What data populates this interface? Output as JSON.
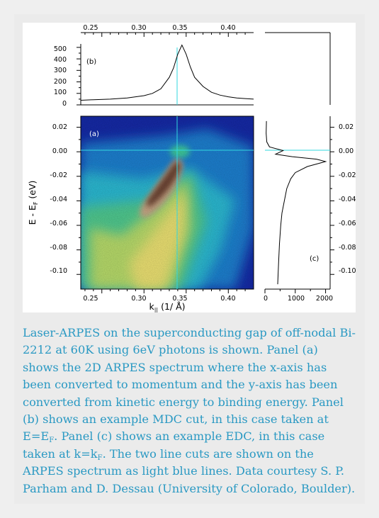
{
  "figure": {
    "panel_labels": {
      "a": "(a)",
      "b": "(b)",
      "c": "(c)"
    },
    "mdc_panel": {
      "top_ticks": [
        "0.25",
        "0.30",
        "0.35",
        "0.40"
      ],
      "y_ticks": [
        "500",
        "400",
        "300",
        "200",
        "100",
        "0"
      ]
    },
    "spectrum_panel": {
      "x_ticks": [
        "0.25",
        "0.30",
        "0.35",
        "0.40"
      ],
      "y_ticks": [
        "0.02",
        "0.00",
        "-0.02",
        "-0.04",
        "-0.06",
        "-0.08",
        "-0.10"
      ],
      "xlabel_main": "k",
      "xlabel_sub": "||",
      "xlabel_unit": " (1/ Å)",
      "ylabel_main": "E - E",
      "ylabel_sub": "F",
      "ylabel_unit": " (eV)"
    },
    "edc_panel": {
      "x_ticks": [
        "0",
        "1000",
        "2000"
      ],
      "y_ticks": [
        "0.02",
        "0.00",
        "-0.02",
        "-0.04",
        "-0.06",
        "-0.08",
        "-0.10"
      ]
    },
    "cut_line_color": "#31d7df"
  },
  "caption": {
    "part1": "Laser-ARPES on the superconducting gap of off-nodal Bi-2212 at 60K using 6eV photons is shown.  Panel (a) shows the 2D ARPES spectrum where the x-axis has been converted to momentum and the y-axis has been converted from kinetic energy to binding energy. Panel (b) shows an example MDC cut, in this case taken at E=E",
    "sub1": "F",
    "part2": ".  Panel (c) shows an example EDC, in this case taken at k=k",
    "sub2": "F",
    "part3": ".  The two line cuts are shown on the ARPES spectrum as light blue lines. Data courtesy S. P. Parham and D. Dessau (University of Colorado, Boulder).",
    "color": "#2a99c3"
  },
  "chart_data": [
    {
      "type": "heatmap",
      "title": "(a)",
      "xlabel": "k|| (1/ Å)",
      "ylabel": "E - EF (eV)",
      "xlim": [
        0.225,
        0.43
      ],
      "ylim": [
        -0.112,
        0.029
      ],
      "x_ticks": [
        0.25,
        0.3,
        0.35,
        0.4
      ],
      "y_ticks": [
        0.02,
        0.0,
        -0.02,
        -0.04,
        -0.06,
        -0.08,
        -0.1
      ],
      "colormap": [
        "#0a1b8c",
        "#1ca3d8",
        "#4ec79a",
        "#e7e16a",
        "#c7a37e",
        "#401f10"
      ],
      "dispersion": {
        "k": [
          0.335,
          0.312,
          0.292,
          0.275,
          0.262
        ],
        "E": [
          -0.005,
          -0.03,
          -0.055,
          -0.08,
          -0.1
        ]
      },
      "cut_k": 0.345,
      "cut_E": 0.0
    },
    {
      "type": "line",
      "title": "(b)",
      "xlim": [
        0.225,
        0.43
      ],
      "ylim": [
        0,
        530
      ],
      "y_ticks": [
        0,
        100,
        200,
        300,
        400,
        500
      ],
      "x": [
        0.225,
        0.24,
        0.26,
        0.28,
        0.3,
        0.31,
        0.32,
        0.33,
        0.335,
        0.34,
        0.345,
        0.35,
        0.355,
        0.36,
        0.37,
        0.38,
        0.39,
        0.4,
        0.41,
        0.42,
        0.43
      ],
      "y": [
        40,
        45,
        50,
        60,
        80,
        100,
        140,
        240,
        320,
        440,
        520,
        440,
        330,
        240,
        160,
        110,
        85,
        70,
        60,
        55,
        50
      ]
    },
    {
      "type": "line",
      "title": "(c)",
      "xlim": [
        0,
        2150
      ],
      "ylim": [
        -0.112,
        0.029
      ],
      "x_ticks": [
        0,
        1000,
        2000
      ],
      "x": [
        50,
        40,
        60,
        150,
        600,
        350,
        900,
        1700,
        2000,
        1400,
        1000,
        850,
        720,
        640,
        560,
        520,
        480,
        450,
        420
      ],
      "y": [
        0.025,
        0.015,
        0.008,
        0.004,
        0.001,
        -0.002,
        -0.004,
        -0.006,
        -0.008,
        -0.012,
        -0.017,
        -0.022,
        -0.03,
        -0.04,
        -0.05,
        -0.06,
        -0.075,
        -0.09,
        -0.108
      ]
    }
  ]
}
